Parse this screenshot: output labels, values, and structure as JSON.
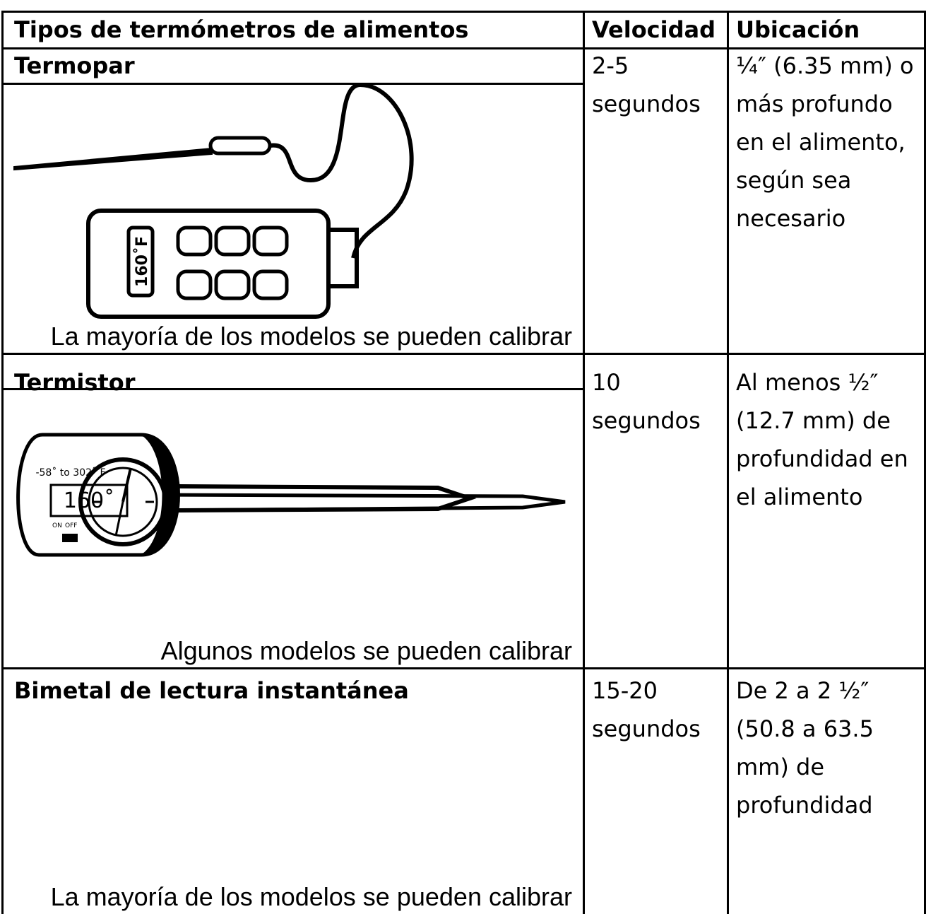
{
  "table": {
    "header": [
      "Tipos de termómetros de alimentos",
      "Velocidad",
      "Ubicación"
    ],
    "rows": [
      {
        "type": "Termopar",
        "image_text": [
          "160˚F"
        ],
        "note": "La mayoría de los modelos se pueden calibrar",
        "speed": "2-5 segundos",
        "location": "¼″ (6.35 mm) o más profundo en el alimento, según sea necesario"
      },
      {
        "type": "Termistor",
        "image_text": [
          "-58˚ to 302˚ F",
          "160˚",
          "ON",
          "OFF"
        ],
        "note": "Algunos modelos se pueden calibrar",
        "speed": "10 segundos",
        "location": "Al menos ½″ (12.7 mm) de profundidad en el alimento"
      },
      {
        "type": "Bimetal de lectura instantánea",
        "note": "La mayoría de los modelos se pueden calibrar",
        "speed": "15-20 segundos",
        "location": "De 2 a 2 ½″ (50.8 a 63.5 mm) de profundidad"
      }
    ]
  }
}
